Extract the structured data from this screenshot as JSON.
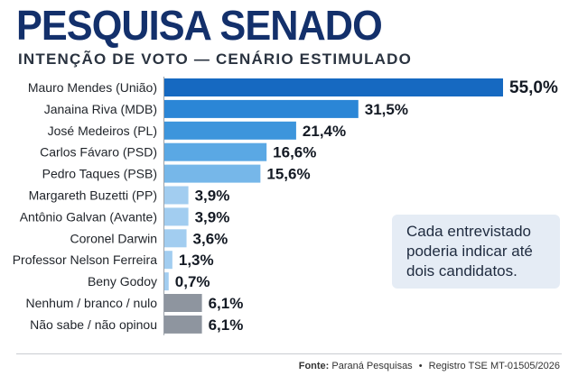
{
  "header": {
    "title": "PESQUISA SENADO",
    "subtitle": "INTENÇÃO DE VOTO — CENÁRIO ESTIMULADO"
  },
  "note": {
    "text": "Cada entrevistado poderia indicar até dois candidatos."
  },
  "footer": {
    "source_label": "Fonte:",
    "source": "Paraná Pesquisas",
    "bullet": "•",
    "registry": "Registro TSE MT-01505/2026"
  },
  "chart_data": {
    "type": "bar",
    "orientation": "horizontal",
    "title": "PESQUISA SENADO",
    "subtitle": "INTENÇÃO DE VOTO — CENÁRIO ESTIMULADO",
    "xlabel": "",
    "ylabel": "",
    "xlim": [
      0,
      55
    ],
    "grid": false,
    "legend": "none",
    "categories": [
      "Mauro Mendes (União)",
      "Janaina Riva (MDB)",
      "José Medeiros (PL)",
      "Carlos Fávaro (PSD)",
      "Pedro Taques (PSB)",
      "Margareth Buzetti (PP)",
      "Antônio Galvan (Avante)",
      "Coronel Darwin",
      "Professor Nelson Ferreira",
      "Beny Godoy",
      "Nenhum / branco / nulo",
      "Não sabe / não opinou"
    ],
    "values": [
      55.0,
      31.5,
      21.4,
      16.6,
      15.6,
      3.9,
      3.9,
      3.6,
      1.3,
      0.7,
      6.1,
      6.1
    ],
    "value_labels": [
      "55,0%",
      "31,5%",
      "21,4%",
      "16,6%",
      "15,6%",
      "3,9%",
      "3,9%",
      "3,6%",
      "1,3%",
      "0,7%",
      "6,1%",
      "6,1%"
    ],
    "colors": [
      "#1669c1",
      "#2b86d6",
      "#3d95dc",
      "#5aa8e4",
      "#76b7e9",
      "#a2cdf0",
      "#a2cdf0",
      "#a2cdf0",
      "#a2cdf0",
      "#a2cdf0",
      "#8e959f",
      "#8e959f"
    ]
  }
}
